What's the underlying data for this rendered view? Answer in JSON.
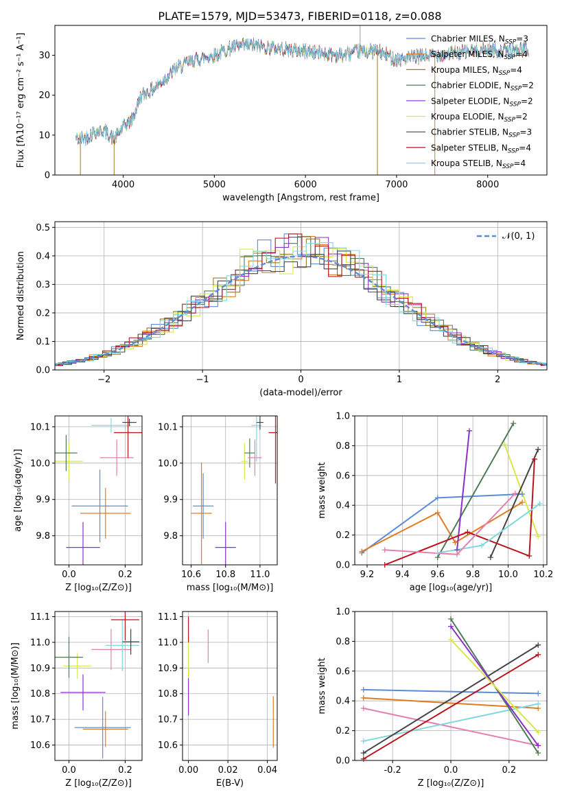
{
  "colors": {
    "chabrier_miles": "#5b8bd6",
    "salpeter_miles": "#e07b1f",
    "kroupa_miles": "#9a7a22",
    "chabrier_elodie": "#4e7a55",
    "salpeter_elodie": "#8b2fc9",
    "kroupa_elodie": "#d8e64a",
    "chabrier_stelib": "#444444",
    "salpeter_stelib": "#b8141c",
    "kroupa_stelib": "#7fd8e0",
    "pink": "#e47fb0",
    "normal_curve": "#5b8bd6"
  },
  "chart_data": [
    {
      "id": "spectrum",
      "type": "line",
      "title": "PLATE=1579, MJD=53473, FIBERID=0118, z=0.088",
      "xlabel": "wavelength [Angstrom, rest frame]",
      "ylabel": "Flux [fλ10⁻¹⁷ erg cm⁻² s⁻¹ A⁻¹]",
      "xlim": [
        3250,
        8650
      ],
      "ylim": [
        0,
        37.5
      ],
      "xticks": [
        4000,
        5000,
        6000,
        7000,
        8000
      ],
      "yticks": [
        0,
        10,
        20,
        30
      ],
      "grid": false,
      "legend_position": "top-right",
      "legend": [
        "Chabrier MILES, N_SSP=3",
        "Salpeter MILES, N_SSP=4",
        "Kroupa MILES, N_SSP=4",
        "Chabrier ELODIE, N_SSP=2",
        "Salpeter ELODIE, N_SSP=2",
        "Kroupa ELODIE, N_SSP=2",
        "Chabrier STELIB, N_SSP=3",
        "Salpeter STELIB, N_SSP=4",
        "Kroupa STELIB, N_SSP=4"
      ],
      "continuum": {
        "x": [
          3500,
          3600,
          3700,
          3800,
          3900,
          4000,
          4100,
          4200,
          4300,
          4400,
          4500,
          4600,
          4800,
          5000,
          5200,
          5400,
          5600,
          5800,
          6000,
          6200,
          6400,
          6600,
          6800,
          7000,
          7200,
          7400,
          7600,
          7800,
          8000,
          8200,
          8400
        ],
        "y": [
          9,
          9.5,
          11,
          11,
          9,
          12,
          14,
          20,
          21,
          23,
          25,
          27,
          29,
          30,
          32,
          32.5,
          32,
          31.5,
          31,
          30.5,
          30,
          31,
          31,
          29,
          29.5,
          30,
          30.5,
          31,
          31.5,
          31,
          31.5
        ]
      },
      "spikes": [
        {
          "x": 3530,
          "y": 0
        },
        {
          "x": 3900,
          "y": 0
        },
        {
          "x": 6790,
          "y": 0
        },
        {
          "x": 7420,
          "y": 0
        },
        {
          "x": 6600,
          "y": 38
        }
      ]
    },
    {
      "id": "residuals",
      "type": "histogram",
      "xlabel": "(data-model)/error",
      "ylabel": "Normed distribution",
      "xlim": [
        -2.5,
        2.5
      ],
      "ylim": [
        0,
        0.52
      ],
      "xticks": [
        -2,
        -1,
        0,
        1,
        2
      ],
      "yticks": [
        0.0,
        0.1,
        0.2,
        0.3,
        0.4,
        0.5
      ],
      "grid": true,
      "legend_position": "top-right",
      "legend": [
        "𝒩(0, 1)"
      ]
    },
    {
      "id": "age_vs_Z",
      "type": "scatter",
      "xlabel": "Z [log₁₀(Z/Z⊙)]",
      "ylabel": "age  [log₁₀(age/yr)]",
      "xlim": [
        -0.05,
        0.26
      ],
      "ylim": [
        9.72,
        10.13
      ],
      "xticks": [
        0.0,
        0.2
      ],
      "yticks": [
        9.8,
        9.9,
        10.0,
        10.1
      ],
      "grid": true,
      "points": [
        {
          "x": 0.05,
          "y": 9.768,
          "xerr": 0.06,
          "yerr": 0.07,
          "color": "salpeter_elodie"
        },
        {
          "x": 0.13,
          "y": 9.862,
          "xerr": 0.09,
          "yerr": 0.07,
          "color": "salpeter_miles"
        },
        {
          "x": 0.11,
          "y": 9.882,
          "xerr": 0.1,
          "yerr": 0.1,
          "color": "chabrier_miles"
        },
        {
          "x": 0.0,
          "y": 10.005,
          "xerr": 0.05,
          "yerr": 0.05,
          "color": "kroupa_elodie"
        },
        {
          "x": -0.01,
          "y": 10.028,
          "xerr": 0.04,
          "yerr": 0.05,
          "color": "chabrier_elodie"
        },
        {
          "x": 0.17,
          "y": 10.015,
          "xerr": 0.06,
          "yerr": 0.05,
          "color": "pink"
        },
        {
          "x": 0.15,
          "y": 10.104,
          "xerr": 0.07,
          "yerr": 0.02,
          "color": "kroupa_stelib"
        },
        {
          "x": 0.21,
          "y": 10.084,
          "xerr": 0.05,
          "yerr": 0.07,
          "color": "salpeter_stelib"
        },
        {
          "x": 0.215,
          "y": 10.112,
          "xerr": 0.025,
          "yerr": 0.01,
          "color": "chabrier_stelib"
        }
      ]
    },
    {
      "id": "age_vs_mass",
      "type": "scatter",
      "xlabel": "mass [log₁₀(M/M⊙)]",
      "xlim": [
        10.55,
        11.1
      ],
      "ylim": [
        9.72,
        10.13
      ],
      "xticks": [
        10.6,
        10.8,
        11.0
      ],
      "yticks": [
        9.8,
        9.9,
        10.0,
        10.1
      ],
      "grid": true,
      "points": [
        {
          "x": 10.8,
          "y": 9.768,
          "xerr": 0.06,
          "yerr": 0.07,
          "color": "salpeter_elodie"
        },
        {
          "x": 10.66,
          "y": 9.862,
          "xerr": 0.06,
          "yerr": 0.14,
          "color": "salpeter_miles"
        },
        {
          "x": 10.67,
          "y": 9.882,
          "xerr": 0.06,
          "yerr": 0.09,
          "color": "chabrier_miles"
        },
        {
          "x": 10.91,
          "y": 10.005,
          "xerr": 0.02,
          "yerr": 0.05,
          "color": "kroupa_elodie"
        },
        {
          "x": 10.94,
          "y": 10.028,
          "xerr": 0.03,
          "yerr": 0.04,
          "color": "chabrier_elodie"
        },
        {
          "x": 10.97,
          "y": 10.015,
          "xerr": 0.04,
          "yerr": 0.05,
          "color": "pink"
        },
        {
          "x": 10.98,
          "y": 10.104,
          "xerr": 0.03,
          "yerr": 0.1,
          "color": "kroupa_stelib"
        },
        {
          "x": 11.09,
          "y": 10.084,
          "xerr": 0.04,
          "yerr": 0.14,
          "color": "salpeter_stelib"
        },
        {
          "x": 11.0,
          "y": 10.112,
          "xerr": 0.02,
          "yerr": 0.02,
          "color": "chabrier_stelib"
        }
      ]
    },
    {
      "id": "weight_vs_age",
      "type": "line",
      "xlabel": "age  [log₁₀(age/yr)]",
      "ylabel": "mass weight",
      "xlim": [
        9.13,
        10.22
      ],
      "ylim": [
        0,
        1
      ],
      "xticks": [
        9.2,
        9.4,
        9.6,
        9.8,
        10.0,
        10.2
      ],
      "yticks": [
        0.0,
        0.2,
        0.4,
        0.6,
        0.8,
        1.0
      ],
      "grid": true,
      "series": [
        {
          "color": "chabrier_miles",
          "x": [
            9.17,
            9.6,
            10.08
          ],
          "y": [
            0.08,
            0.45,
            0.475
          ]
        },
        {
          "color": "salpeter_miles",
          "x": [
            9.17,
            9.6,
            9.7,
            10.08
          ],
          "y": [
            0.09,
            0.35,
            0.15,
            0.42
          ]
        },
        {
          "color": "chabrier_elodie",
          "x": [
            9.6,
            10.03
          ],
          "y": [
            0.05,
            0.95
          ]
        },
        {
          "color": "salpeter_elodie",
          "x": [
            9.71,
            9.78
          ],
          "y": [
            0.1,
            0.9
          ]
        },
        {
          "color": "kroupa_elodie",
          "x": [
            9.98,
            10.17
          ],
          "y": [
            0.81,
            0.19
          ]
        },
        {
          "color": "chabrier_stelib",
          "x": [
            9.9,
            10.17
          ],
          "y": [
            0.05,
            0.775
          ]
        },
        {
          "color": "salpeter_stelib",
          "x": [
            9.3,
            9.77,
            10.12,
            10.15
          ],
          "y": [
            0.0,
            0.22,
            0.06,
            0.71
          ]
        },
        {
          "color": "kroupa_stelib",
          "x": [
            9.6,
            9.85,
            10.18
          ],
          "y": [
            0.08,
            0.13,
            0.41
          ]
        },
        {
          "color": "pink",
          "x": [
            9.3,
            9.71,
            10.04
          ],
          "y": [
            0.1,
            0.07,
            0.48
          ]
        }
      ]
    },
    {
      "id": "mass_vs_Z",
      "type": "scatter",
      "xlabel": "Z [log₁₀(Z/Z⊙)]",
      "ylabel": "mass [log₁₀(M/M⊙)]",
      "xlim": [
        -0.05,
        0.26
      ],
      "ylim": [
        10.54,
        11.12
      ],
      "xticks": [
        0.0,
        0.2
      ],
      "yticks": [
        10.6,
        10.7,
        10.8,
        10.9,
        11.0,
        11.1
      ],
      "grid": true,
      "points": [
        {
          "x": 0.05,
          "y": 10.805,
          "xerr": 0.08,
          "yerr": 0.07,
          "color": "salpeter_elodie"
        },
        {
          "x": 0.13,
          "y": 10.662,
          "xerr": 0.08,
          "yerr": 0.07,
          "color": "salpeter_miles"
        },
        {
          "x": 0.12,
          "y": 10.668,
          "xerr": 0.1,
          "yerr": 0.12,
          "color": "chabrier_miles"
        },
        {
          "x": 0.03,
          "y": 10.908,
          "xerr": 0.05,
          "yerr": 0.05,
          "color": "kroupa_elodie"
        },
        {
          "x": 0.0,
          "y": 10.942,
          "xerr": 0.05,
          "yerr": 0.08,
          "color": "chabrier_elodie"
        },
        {
          "x": 0.15,
          "y": 10.972,
          "xerr": 0.07,
          "yerr": 0.08,
          "color": "pink"
        },
        {
          "x": 0.19,
          "y": 10.988,
          "xerr": 0.06,
          "yerr": 0.1,
          "color": "kroupa_stelib"
        },
        {
          "x": 0.2,
          "y": 11.088,
          "xerr": 0.05,
          "yerr": 0.08,
          "color": "salpeter_stelib"
        },
        {
          "x": 0.22,
          "y": 11.002,
          "xerr": 0.03,
          "yerr": 0.05,
          "color": "chabrier_stelib"
        }
      ]
    },
    {
      "id": "mass_vs_ebv",
      "type": "scatter",
      "xlabel": "E(B-V)",
      "xlim": [
        -0.003,
        0.045
      ],
      "ylim": [
        10.54,
        11.12
      ],
      "xticks": [
        0.0,
        0.02,
        0.04
      ],
      "yticks": [
        10.6,
        10.7,
        10.8,
        10.9,
        11.0,
        11.1
      ],
      "grid": true,
      "points": [
        {
          "x": 0.0,
          "y": 10.805,
          "xerr": 0,
          "yerr": 0.09,
          "color": "salpeter_elodie"
        },
        {
          "x": 0.0,
          "y": 10.94,
          "xerr": 0,
          "yerr": 0.08,
          "color": "kroupa_elodie"
        },
        {
          "x": 0.0,
          "y": 11.05,
          "xerr": 0,
          "yerr": 0.05,
          "color": "salpeter_stelib"
        },
        {
          "x": 0.01,
          "y": 10.985,
          "xerr": 0,
          "yerr": 0.065,
          "color": "pink"
        },
        {
          "x": 0.043,
          "y": 10.69,
          "xerr": 0,
          "yerr": 0.1,
          "color": "salpeter_miles"
        }
      ]
    },
    {
      "id": "weight_vs_Z",
      "type": "line",
      "xlabel": "Z [log₁₀(Z/Z⊙)]",
      "ylabel": "mass weight",
      "xlim": [
        -0.33,
        0.33
      ],
      "ylim": [
        0,
        1
      ],
      "xticks": [
        -0.2,
        0.0,
        0.2
      ],
      "yticks": [
        0.0,
        0.2,
        0.4,
        0.6,
        0.8,
        1.0
      ],
      "grid": true,
      "series": [
        {
          "color": "chabrier_miles",
          "x": [
            -0.3,
            0.3
          ],
          "y": [
            0.475,
            0.45
          ]
        },
        {
          "color": "salpeter_miles",
          "x": [
            -0.3,
            0.3
          ],
          "y": [
            0.42,
            0.35
          ]
        },
        {
          "color": "pink",
          "x": [
            -0.3,
            0.3
          ],
          "y": [
            0.35,
            0.1
          ]
        },
        {
          "color": "kroupa_stelib",
          "x": [
            -0.3,
            0.3
          ],
          "y": [
            0.13,
            0.38
          ]
        },
        {
          "color": "chabrier_stelib",
          "x": [
            -0.3,
            0.3
          ],
          "y": [
            0.05,
            0.775
          ]
        },
        {
          "color": "salpeter_stelib",
          "x": [
            -0.3,
            0.3
          ],
          "y": [
            0.01,
            0.71
          ]
        },
        {
          "color": "chabrier_elodie",
          "x": [
            0.0,
            0.3
          ],
          "y": [
            0.95,
            0.05
          ]
        },
        {
          "color": "salpeter_elodie",
          "x": [
            0.0,
            0.3
          ],
          "y": [
            0.9,
            0.1
          ]
        },
        {
          "color": "kroupa_elodie",
          "x": [
            0.0,
            0.3
          ],
          "y": [
            0.81,
            0.19
          ]
        }
      ]
    }
  ]
}
